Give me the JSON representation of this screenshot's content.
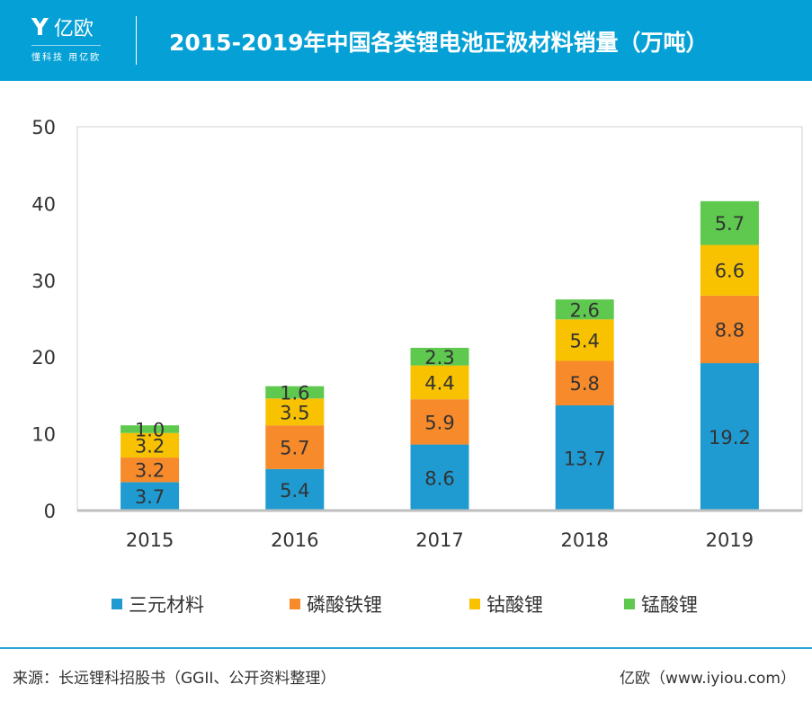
{
  "header": {
    "logo_name": "亿欧",
    "logo_slogan": "懂科技 用亿欧",
    "title": "2015-2019年中国各类锂电池正极材料销量（万吨）"
  },
  "chart_data": {
    "type": "bar",
    "stacked": true,
    "title": "2015-2019年中国各类锂电池正极材料销量（万吨）",
    "categories": [
      "2015",
      "2016",
      "2017",
      "2018",
      "2019"
    ],
    "ylim": [
      0,
      50
    ],
    "yticks": [
      0,
      10,
      20,
      30,
      40,
      50
    ],
    "grid": false,
    "legend": "bottom",
    "series": [
      {
        "name": "三元材料",
        "color": "#1f9bd2",
        "values": [
          3.7,
          5.4,
          8.6,
          13.7,
          19.2
        ]
      },
      {
        "name": "磷酸铁锂",
        "color": "#f78a2a",
        "values": [
          3.2,
          5.7,
          5.9,
          5.8,
          8.8
        ]
      },
      {
        "name": "钴酸锂",
        "color": "#f9c201",
        "values": [
          3.2,
          3.5,
          4.4,
          5.4,
          6.6
        ]
      },
      {
        "name": "锰酸锂",
        "color": "#5ec84f",
        "values": [
          1.0,
          1.6,
          2.3,
          2.6,
          5.7
        ]
      }
    ]
  },
  "footer": {
    "source": "来源：长远锂科招股书（GGII、公开资料整理）",
    "credit": "亿欧（www.iyiou.com）"
  }
}
